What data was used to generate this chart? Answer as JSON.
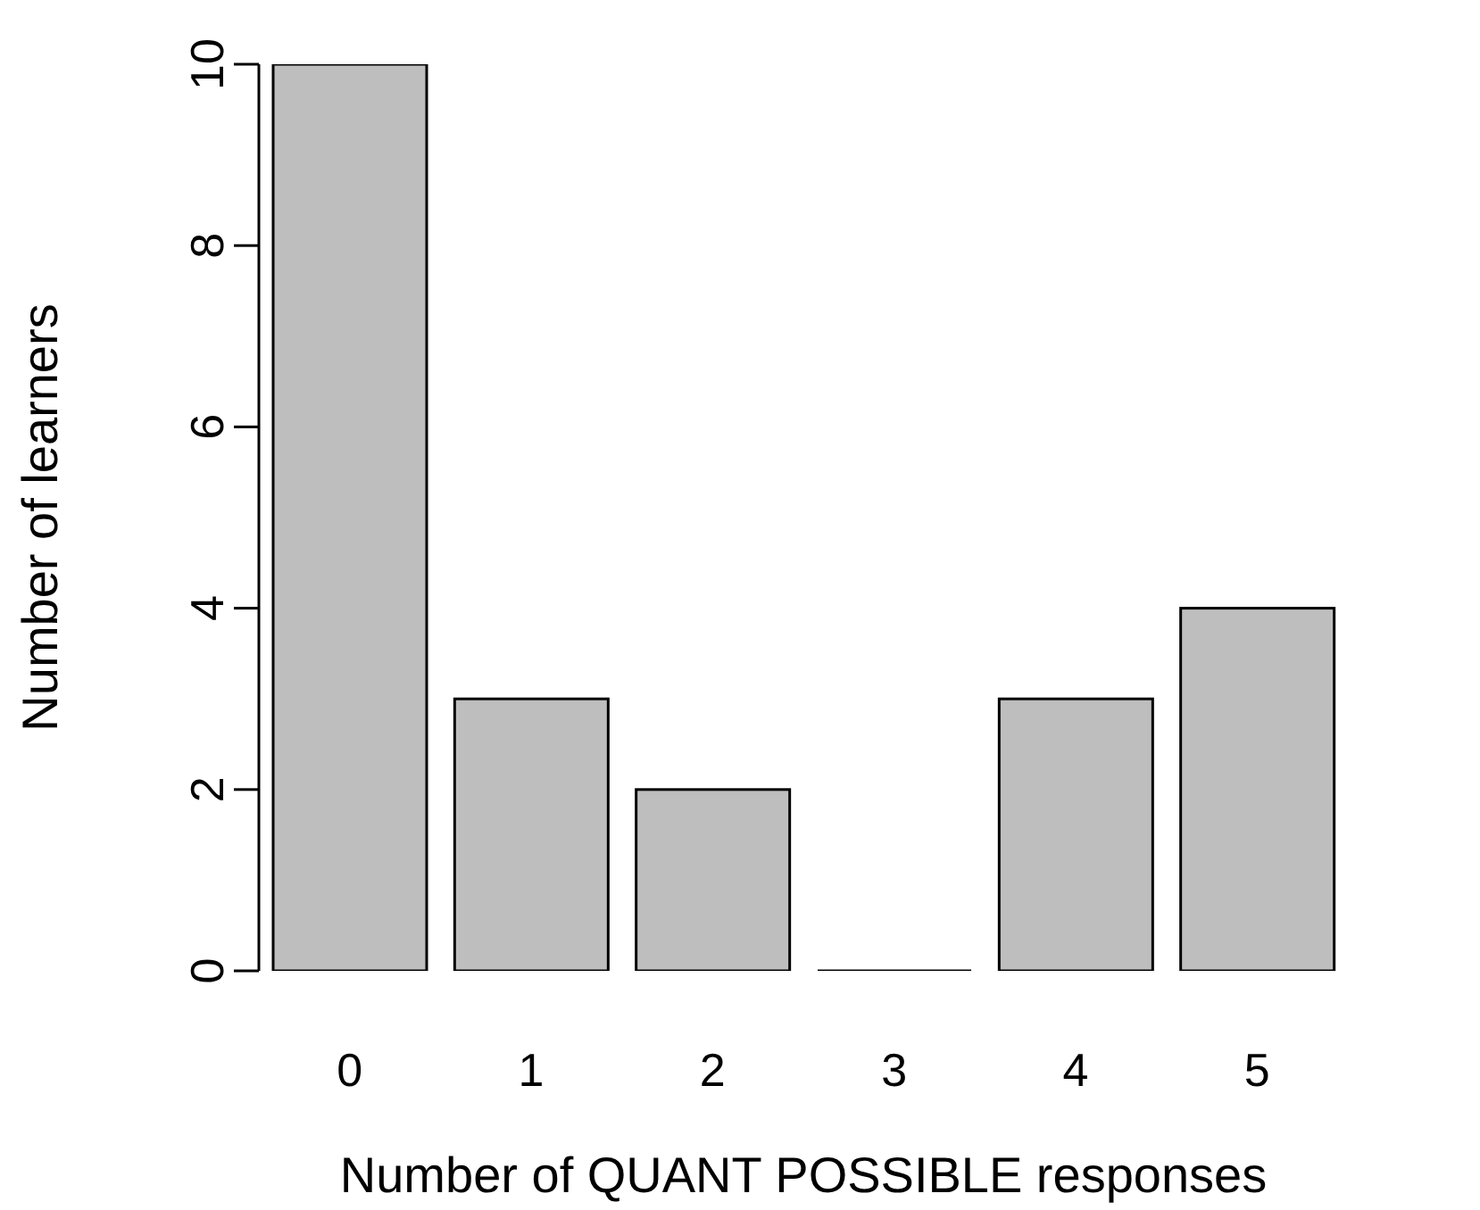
{
  "chart_data": {
    "type": "bar",
    "categories": [
      "0",
      "1",
      "2",
      "3",
      "4",
      "5"
    ],
    "values": [
      10,
      3,
      2,
      0,
      3,
      4
    ],
    "color": "#bebebe",
    "xlabel": "Number of QUANT POSSIBLE responses",
    "ylabel": "Number of learners",
    "ylim": [
      0,
      10
    ],
    "yticks": [
      0,
      2,
      4,
      6,
      8,
      10
    ],
    "grid": false,
    "legend": false
  }
}
